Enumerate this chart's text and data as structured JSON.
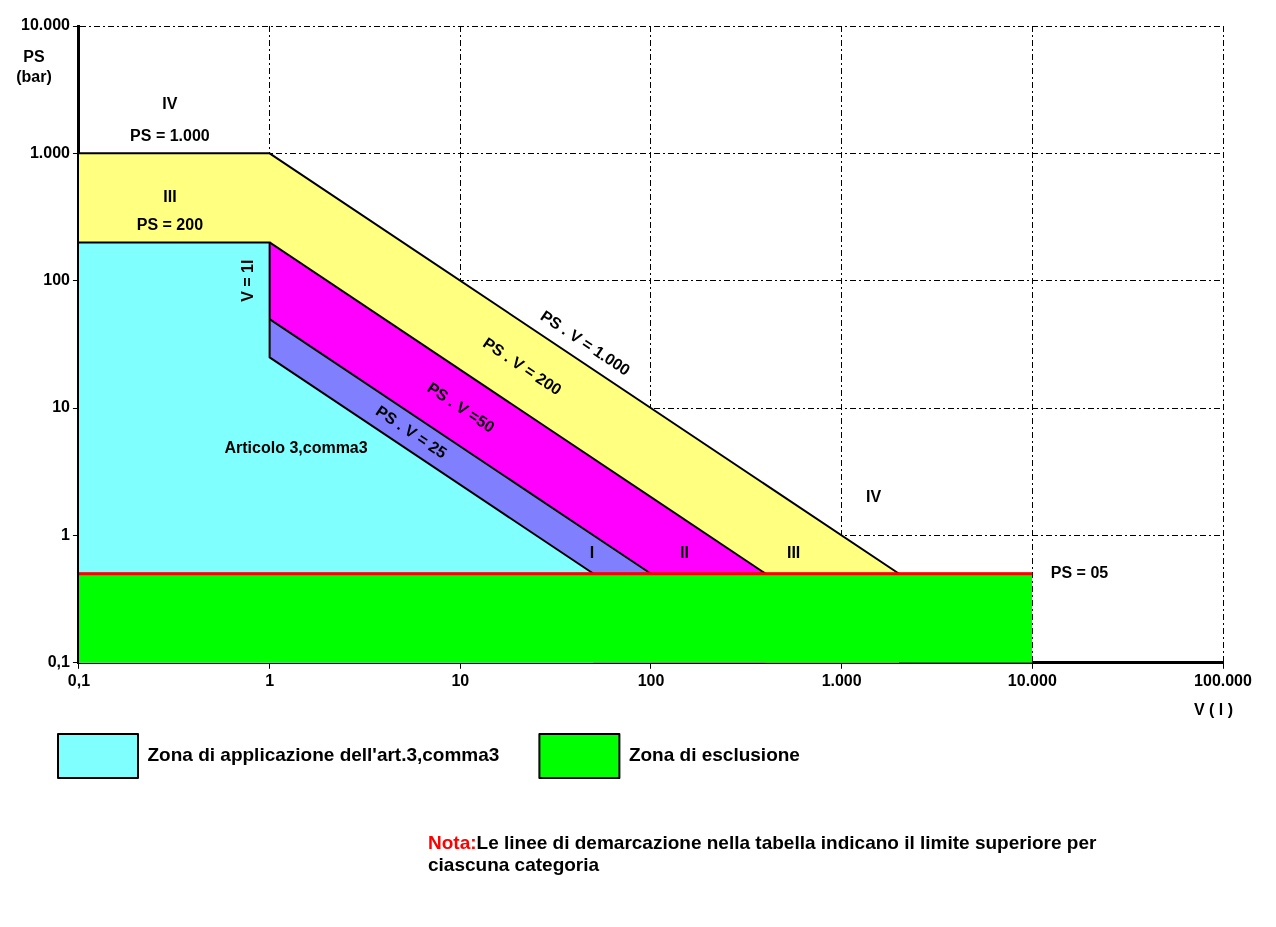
{
  "chart_data": {
    "type": "area",
    "xlabel": "V ( l )",
    "ylabel": "PS (bar)",
    "log": "xy",
    "grid": true,
    "marker": "none",
    "legend": "bottom",
    "xlim": [
      0.1,
      100000
    ],
    "ylim": [
      0.1,
      10000
    ],
    "xticks": [
      {
        "value": 0.1,
        "label": "0,1"
      },
      1,
      10,
      100,
      {
        "value": 1000,
        "label": "1.000"
      },
      {
        "value": 10000,
        "label": "10.000"
      },
      {
        "value": 100000,
        "label": "100.000"
      }
    ],
    "yticks": [
      {
        "value": 0.1,
        "label": "0,1"
      },
      1,
      10,
      100,
      {
        "value": 1000,
        "label": "1.000"
      },
      {
        "value": 10000,
        "label": "10.000"
      }
    ],
    "series": [
      {
        "color": "#ffff80",
        "x": [
          0.1,
          1,
          2000
        ],
        "values": [
          1000,
          1000,
          0.5
        ]
      },
      {
        "color": "#ff00ff",
        "x": [
          1,
          400
        ],
        "values": [
          200,
          0.5
        ]
      },
      {
        "color": "#8080ff",
        "x": [
          1,
          100
        ],
        "values": [
          50,
          0.5
        ]
      },
      {
        "name": "Zona di applicazione dell'art.3,comma3",
        "color": "#80ffff",
        "x": [
          0.1,
          1,
          1,
          50
        ],
        "values": [
          200,
          200,
          25,
          0.5
        ]
      },
      {
        "name": "Zona di esclusione",
        "color": "#00ff00",
        "x": [
          0.1,
          10000
        ],
        "values": [
          0.5,
          0.5
        ]
      },
      {
        "type": "line",
        "color": "#ff0000",
        "x": [
          0.1,
          10000
        ],
        "values": [
          0.5,
          0.5
        ]
      }
    ],
    "annotations": [
      "IV",
      "PS = 1.000",
      "III",
      "PS = 200",
      "V = 1l",
      "PS . V = 1.000",
      "PS . V = 200",
      "PS . V =50",
      "PS . V = 25",
      "Articolo 3,comma3",
      "I",
      "II",
      "III",
      "IV",
      "PS = 05",
      "Nota:Le linee di demarcazione nella tabella indicano il limite superiore per ciascuna categoria"
    ]
  }
}
